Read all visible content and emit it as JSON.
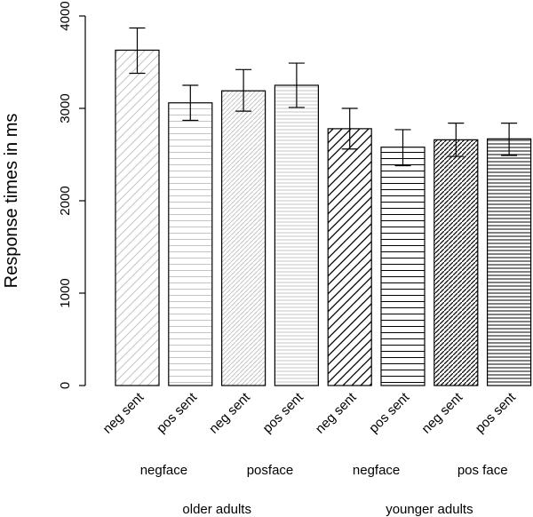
{
  "chart_data": {
    "type": "bar",
    "ylabel": "Response times in ms",
    "ylim": [
      0,
      4000
    ],
    "yticks": [
      "0",
      "1000",
      "2000",
      "3000",
      "4000"
    ],
    "categories": [
      "neg sent",
      "pos sent",
      "neg sent",
      "pos sent",
      "neg sent",
      "pos sent",
      "neg sent",
      "pos sent"
    ],
    "values": [
      3630,
      3060,
      3190,
      3250,
      2780,
      2580,
      2660,
      2670
    ],
    "error_low": [
      3380,
      2870,
      2970,
      3010,
      2560,
      2380,
      2480,
      2490
    ],
    "error_high": [
      3870,
      3250,
      3420,
      3490,
      3000,
      2770,
      2840,
      2840
    ],
    "patterns": [
      "diag-light",
      "horiz-light",
      "diag-light-dense",
      "horiz-light-dense",
      "diag-dark",
      "horiz-dark",
      "diag-dark-dense",
      "horiz-dark-dense"
    ],
    "face_groups": [
      {
        "label": "negface",
        "bars": [
          0,
          1
        ]
      },
      {
        "label": "posface",
        "bars": [
          2,
          3
        ]
      },
      {
        "label": "negface",
        "bars": [
          4,
          5
        ]
      },
      {
        "label": "pos face",
        "bars": [
          6,
          7
        ]
      }
    ],
    "age_groups": [
      {
        "label": "older adults",
        "bars": [
          0,
          1,
          2,
          3
        ]
      },
      {
        "label": "younger adults",
        "bars": [
          4,
          5,
          6,
          7
        ]
      }
    ],
    "colors": {
      "light_pattern": "#bdbdbd",
      "dark_pattern": "#000000",
      "axis": "#000000"
    }
  }
}
